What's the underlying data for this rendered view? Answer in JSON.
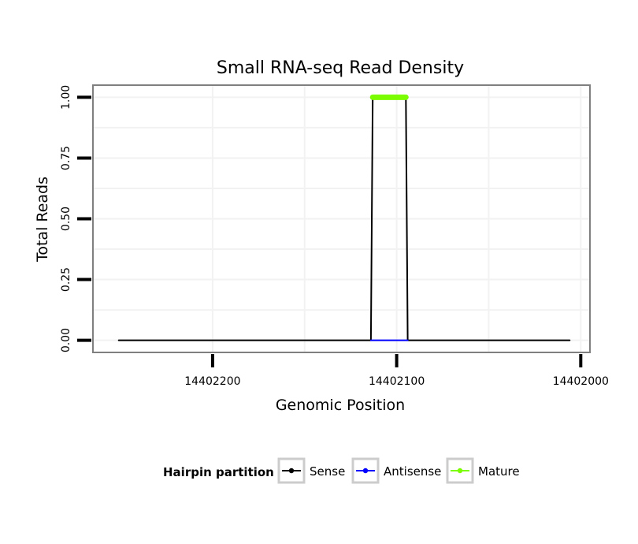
{
  "chart_data": {
    "type": "line",
    "title": "Small RNA-seq Read Density",
    "xlabel": "Genomic Position",
    "ylabel": "Total Reads",
    "x_reversed": true,
    "xlim": [
      14402265,
      14401995
    ],
    "ylim": [
      -0.05,
      1.05
    ],
    "x_ticks": [
      14402200,
      14402100,
      14402000
    ],
    "x_tick_labels": [
      "14402200",
      "14402100",
      "14402000"
    ],
    "y_ticks": [
      0,
      0.25,
      0.5,
      0.75,
      1.0
    ],
    "y_tick_labels": [
      "0.00",
      "0.25",
      "0.50",
      "0.75",
      "1.00"
    ],
    "grid": true,
    "series": [
      {
        "name": "Sense",
        "color": "#000000",
        "x": [
          14402251,
          14402114,
          14402113,
          14402095,
          14402094,
          14402006
        ],
        "y": [
          0,
          0,
          1,
          1,
          0,
          0
        ]
      },
      {
        "name": "Antisense",
        "color": "#0000ff",
        "x": [
          14402114,
          14402094
        ],
        "y": [
          0,
          0
        ]
      },
      {
        "name": "Mature",
        "color": "#7cfc00",
        "x": [
          14402113,
          14402095
        ],
        "y": [
          1,
          1
        ]
      }
    ],
    "legend": {
      "title": "Hairpin partition",
      "position": "bottom",
      "entries": [
        "Sense",
        "Antisense",
        "Mature"
      ]
    }
  }
}
